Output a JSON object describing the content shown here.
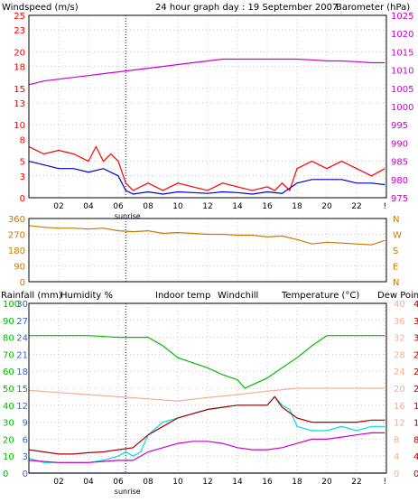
{
  "colors": {
    "windspeed": "#ff0000",
    "windavg": "#0000cc",
    "barometer": "#cc00cc",
    "direction": "#cc7700",
    "rainfall": "#3366cc",
    "humidity": "#00bb00",
    "indoor": "#f0b090",
    "windchill": "#00dddd",
    "temperature": "#aa0000",
    "dewpoint": "#cc00cc",
    "axis": "#000000",
    "grid": "#c8c8c8"
  },
  "header": {
    "windspeed_label": "Windspeed (m/s)",
    "title": "24 hour graph day : 19 September 2007",
    "barometer_label": "Barometer (hPa)"
  },
  "panel3": {
    "rainfall_label": "Rainfall (mm)",
    "humidity_label": "Humidity %",
    "indoor_label": "Indoor temp",
    "windchill_label": "Windchill",
    "temperature_label": "Temperature (°C)",
    "dewpoint_label": "Dew Point"
  },
  "x_axis": {
    "ticks": [
      "02",
      "04",
      "06",
      "08",
      "10",
      "12",
      "14",
      "16",
      "18",
      "20",
      "22",
      "!"
    ],
    "tick_hours": [
      2,
      4,
      6,
      8,
      10,
      12,
      14,
      16,
      18,
      20,
      22,
      23.9
    ],
    "sunrise_label": "sunrise",
    "sunrise_hour": 6.5
  },
  "chart_data": [
    {
      "type": "line",
      "title": "24 hour graph day : 19 September 2007",
      "x_unit": "hour",
      "xlim": [
        0,
        24
      ],
      "left_axis": {
        "label": "Windspeed (m/s)",
        "ylim": [
          0,
          25
        ],
        "ticks": [
          0,
          3,
          5,
          8,
          10,
          13,
          15,
          18,
          20,
          23,
          25
        ]
      },
      "right_axis": {
        "label": "Barometer (hPa)",
        "ylim": [
          975,
          1025
        ],
        "ticks": [
          975,
          980,
          985,
          990,
          995,
          1000,
          1005,
          1010,
          1015,
          1020,
          1025
        ]
      },
      "series": [
        {
          "name": "Windspeed (m/s)",
          "axis": "left",
          "color": "#ff0000",
          "x": [
            0,
            1,
            2,
            3,
            4,
            4.5,
            5,
            5.5,
            6,
            6.5,
            7,
            8,
            9,
            10,
            11,
            12,
            13,
            14,
            15,
            16,
            16.5,
            17,
            17.5,
            18,
            19,
            20,
            21,
            22,
            23,
            23.9
          ],
          "y": [
            7,
            6,
            6.5,
            6,
            5,
            7,
            5,
            6,
            5,
            2,
            1,
            2,
            1,
            2,
            1.5,
            1,
            2,
            1.5,
            1,
            1.5,
            1,
            2,
            1,
            4,
            5,
            4,
            5,
            4,
            3,
            4
          ]
        },
        {
          "name": "Windspeed average (m/s)",
          "axis": "left",
          "color": "#0000cc",
          "x": [
            0,
            1,
            2,
            3,
            4,
            5,
            6,
            6.5,
            7,
            8,
            9,
            10,
            11,
            12,
            13,
            14,
            15,
            16,
            17,
            18,
            19,
            20,
            21,
            22,
            23,
            23.9
          ],
          "y": [
            5,
            4.5,
            4,
            4,
            3.5,
            4,
            3,
            1,
            0.5,
            0.8,
            0.5,
            0.8,
            0.7,
            0.6,
            0.8,
            0.7,
            0.5,
            0.8,
            0.6,
            2,
            2.5,
            2.5,
            2.5,
            2,
            2,
            1.8
          ]
        },
        {
          "name": "Barometer (hPa)",
          "axis": "right",
          "color": "#cc00cc",
          "x": [
            0,
            1,
            2,
            3,
            4,
            5,
            6,
            7,
            8,
            9,
            10,
            11,
            12,
            13,
            14,
            15,
            16,
            17,
            18,
            19,
            20,
            21,
            22,
            23,
            23.9
          ],
          "y": [
            1006,
            1007,
            1007.5,
            1008,
            1008.5,
            1009,
            1009.5,
            1010,
            1010.5,
            1011,
            1011.5,
            1012,
            1012.5,
            1013,
            1013,
            1013,
            1013,
            1013,
            1013,
            1012.8,
            1012.5,
            1012.5,
            1012.3,
            1012,
            1012
          ]
        }
      ]
    },
    {
      "type": "line",
      "title": "",
      "x_unit": "hour",
      "xlim": [
        0,
        24
      ],
      "left_axis": {
        "label": "",
        "ylim": [
          0,
          360
        ],
        "ticks": [
          0,
          90,
          180,
          270,
          360
        ]
      },
      "right_axis": {
        "label": "",
        "ticks": [
          "N",
          "E",
          "S",
          "W",
          "N"
        ]
      },
      "series": [
        {
          "name": "Wind direction",
          "axis": "left",
          "color": "#cc7700",
          "x": [
            0,
            1,
            2,
            3,
            4,
            5,
            6,
            7,
            8,
            9,
            10,
            11,
            12,
            13,
            14,
            15,
            16,
            17,
            18,
            19,
            20,
            21,
            22,
            23,
            23.9
          ],
          "y": [
            320,
            310,
            305,
            305,
            300,
            305,
            290,
            285,
            290,
            275,
            280,
            275,
            270,
            270,
            265,
            265,
            255,
            260,
            240,
            215,
            225,
            220,
            215,
            210,
            235
          ]
        }
      ]
    },
    {
      "type": "line",
      "title": "",
      "x_unit": "hour",
      "xlim": [
        0,
        24
      ],
      "left_axes": [
        {
          "label": "Rainfall (mm)",
          "ylim": [
            0,
            30
          ],
          "ticks": [
            0,
            3,
            6,
            9,
            12,
            15,
            18,
            21,
            24,
            27,
            30
          ]
        },
        {
          "label": "Humidity %",
          "ylim": [
            0,
            100
          ],
          "ticks": [
            0,
            10,
            20,
            30,
            40,
            50,
            60,
            70,
            80,
            90,
            100
          ]
        }
      ],
      "right_axes": [
        {
          "label": "Indoor temp",
          "ylim": [
            0,
            40
          ],
          "ticks": [
            0,
            4,
            8,
            12,
            16,
            20,
            24,
            28,
            32,
            36,
            40
          ]
        },
        {
          "label": "Temperature (°C)",
          "ylim": [
            0,
            40
          ],
          "ticks": [
            0,
            4,
            8,
            12,
            16,
            20,
            24,
            28,
            32,
            36,
            40
          ]
        }
      ],
      "series": [
        {
          "name": "Humidity %",
          "axis": "humidity",
          "color": "#00bb00",
          "x": [
            0,
            2,
            4,
            6,
            7,
            8,
            9,
            10,
            11,
            12,
            13,
            14,
            14.5,
            15,
            16,
            17,
            18,
            19,
            20,
            21,
            22,
            23,
            23.9
          ],
          "y": [
            81,
            81,
            81,
            80,
            80,
            80,
            75,
            68,
            65,
            62,
            58,
            55,
            50,
            52,
            56,
            62,
            68,
            75,
            81,
            81,
            81,
            81,
            81
          ]
        },
        {
          "name": "Indoor temp",
          "axis": "temperature",
          "color": "#f0b090",
          "x": [
            0,
            2,
            4,
            6,
            8,
            10,
            12,
            14,
            16,
            18,
            20,
            22,
            23.9
          ],
          "y": [
            19.5,
            19,
            18.5,
            18,
            17.5,
            17,
            17.8,
            18.5,
            19.3,
            20,
            20,
            20,
            20
          ]
        },
        {
          "name": "Windchill",
          "axis": "temperature",
          "color": "#00dddd",
          "x": [
            0,
            1,
            2,
            3,
            4,
            5,
            6,
            6.5,
            7,
            7.5,
            8,
            9,
            10,
            11,
            12,
            13,
            14,
            15,
            16,
            16.5,
            17,
            17.5,
            18,
            19,
            20,
            21,
            22,
            23,
            23.9
          ],
          "y": [
            3.5,
            2.5,
            2.5,
            2.5,
            2.5,
            3,
            4,
            5,
            4,
            5,
            9,
            12,
            13,
            14,
            15,
            15.5,
            16,
            16,
            16,
            18,
            16,
            15,
            11,
            10,
            10,
            11,
            10,
            11,
            11
          ]
        },
        {
          "name": "Temperature (°C)",
          "axis": "temperature",
          "color": "#aa0000",
          "x": [
            0,
            1,
            2,
            3,
            4,
            5,
            6,
            7,
            8,
            9,
            10,
            11,
            12,
            13,
            14,
            15,
            16,
            16.5,
            17,
            18,
            19,
            20,
            21,
            22,
            23,
            23.9
          ],
          "y": [
            5.5,
            5,
            4.5,
            4.5,
            4.8,
            5,
            5.5,
            6,
            9,
            11,
            13,
            14,
            15,
            15.5,
            16,
            16,
            16,
            18,
            15.5,
            13,
            12,
            12,
            12,
            12,
            12.5,
            12.5
          ]
        },
        {
          "name": "Dew Point",
          "axis": "temperature",
          "color": "#cc00cc",
          "x": [
            0,
            2,
            4,
            6,
            7,
            8,
            9,
            10,
            11,
            12,
            13,
            14,
            15,
            16,
            17,
            18,
            19,
            20,
            21,
            22,
            23,
            23.9
          ],
          "y": [
            3,
            2.5,
            2.5,
            3,
            3,
            5,
            6,
            7,
            7.5,
            7.5,
            7,
            6,
            5.5,
            5.5,
            6,
            7,
            8,
            8,
            8.5,
            9,
            9.5,
            9.5
          ]
        },
        {
          "name": "Rainfall (mm)",
          "axis": "rainfall",
          "color": "#3366cc",
          "x": [
            0,
            23.9
          ],
          "y": [
            0,
            0
          ]
        }
      ]
    }
  ]
}
